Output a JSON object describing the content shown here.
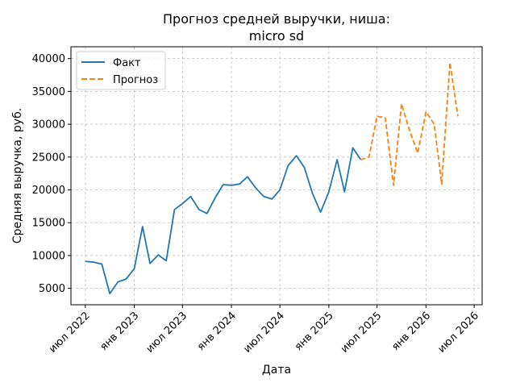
{
  "chart_data": {
    "type": "line",
    "title_lines": [
      "Прогноз средней выручки, ниша:",
      "micro sd"
    ],
    "xlabel": "Дата",
    "ylabel": "Средняя выручка, руб.",
    "grid": true,
    "legend_position": "top-left",
    "ylim": [
      2500,
      41800
    ],
    "xlim": [
      "2022-05-08",
      "2026-07-31"
    ],
    "x_ticks": [
      {
        "date": "2022-07-01",
        "label": "июл 2022"
      },
      {
        "date": "2023-01-01",
        "label": "янв 2023"
      },
      {
        "date": "2023-07-01",
        "label": "июл 2023"
      },
      {
        "date": "2024-01-01",
        "label": "янв 2024"
      },
      {
        "date": "2024-07-01",
        "label": "июл 2024"
      },
      {
        "date": "2025-01-01",
        "label": "янв 2025"
      },
      {
        "date": "2025-07-01",
        "label": "июл 2025"
      },
      {
        "date": "2026-01-01",
        "label": "янв 2026"
      },
      {
        "date": "2026-07-01",
        "label": "июл 2026"
      }
    ],
    "y_ticks": [
      {
        "value": 5000,
        "label": "5000"
      },
      {
        "value": 10000,
        "label": "10000"
      },
      {
        "value": 15000,
        "label": "15000"
      },
      {
        "value": 20000,
        "label": "20000"
      },
      {
        "value": 25000,
        "label": "25000"
      },
      {
        "value": 30000,
        "label": "30000"
      },
      {
        "value": 35000,
        "label": "35000"
      },
      {
        "value": 40000,
        "label": "40000"
      }
    ],
    "series": [
      {
        "name": "Факт",
        "color": "#1f77b4",
        "style": "solid",
        "points": [
          [
            "2022-07-01",
            9100
          ],
          [
            "2022-08-01",
            9000
          ],
          [
            "2022-09-01",
            8700
          ],
          [
            "2022-10-01",
            4200
          ],
          [
            "2022-11-01",
            6000
          ],
          [
            "2022-12-01",
            6400
          ],
          [
            "2023-01-01",
            8000
          ],
          [
            "2023-02-01",
            14400
          ],
          [
            "2023-03-01",
            8800
          ],
          [
            "2023-04-01",
            10100
          ],
          [
            "2023-05-01",
            9200
          ],
          [
            "2023-06-01",
            17000
          ],
          [
            "2023-07-01",
            17900
          ],
          [
            "2023-08-01",
            19000
          ],
          [
            "2023-09-01",
            17000
          ],
          [
            "2023-10-01",
            16400
          ],
          [
            "2023-11-01",
            18800
          ],
          [
            "2023-12-01",
            20800
          ],
          [
            "2024-01-01",
            20700
          ],
          [
            "2024-02-01",
            20900
          ],
          [
            "2024-03-01",
            22000
          ],
          [
            "2024-04-01",
            20300
          ],
          [
            "2024-05-01",
            19000
          ],
          [
            "2024-06-01",
            18600
          ],
          [
            "2024-07-01",
            20000
          ],
          [
            "2024-08-01",
            23700
          ],
          [
            "2024-09-01",
            25200
          ],
          [
            "2024-10-01",
            23400
          ],
          [
            "2024-11-01",
            19400
          ],
          [
            "2024-12-01",
            16600
          ],
          [
            "2025-01-01",
            19700
          ],
          [
            "2025-02-01",
            24600
          ],
          [
            "2025-03-01",
            19700
          ],
          [
            "2025-04-01",
            26400
          ],
          [
            "2025-05-01",
            24600
          ]
        ]
      },
      {
        "name": "Прогноз",
        "color": "#ff7f0e",
        "style": "dashed",
        "points": [
          [
            "2025-05-01",
            24600
          ],
          [
            "2025-06-01",
            25000
          ],
          [
            "2025-07-01",
            31200
          ],
          [
            "2025-08-01",
            31000
          ],
          [
            "2025-09-01",
            20700
          ],
          [
            "2025-10-01",
            33100
          ],
          [
            "2025-11-01",
            29000
          ],
          [
            "2025-12-01",
            25600
          ],
          [
            "2026-01-01",
            31900
          ],
          [
            "2026-02-01",
            30000
          ],
          [
            "2026-03-01",
            20900
          ],
          [
            "2026-04-01",
            39400
          ],
          [
            "2026-05-01",
            31200
          ]
        ]
      }
    ]
  }
}
